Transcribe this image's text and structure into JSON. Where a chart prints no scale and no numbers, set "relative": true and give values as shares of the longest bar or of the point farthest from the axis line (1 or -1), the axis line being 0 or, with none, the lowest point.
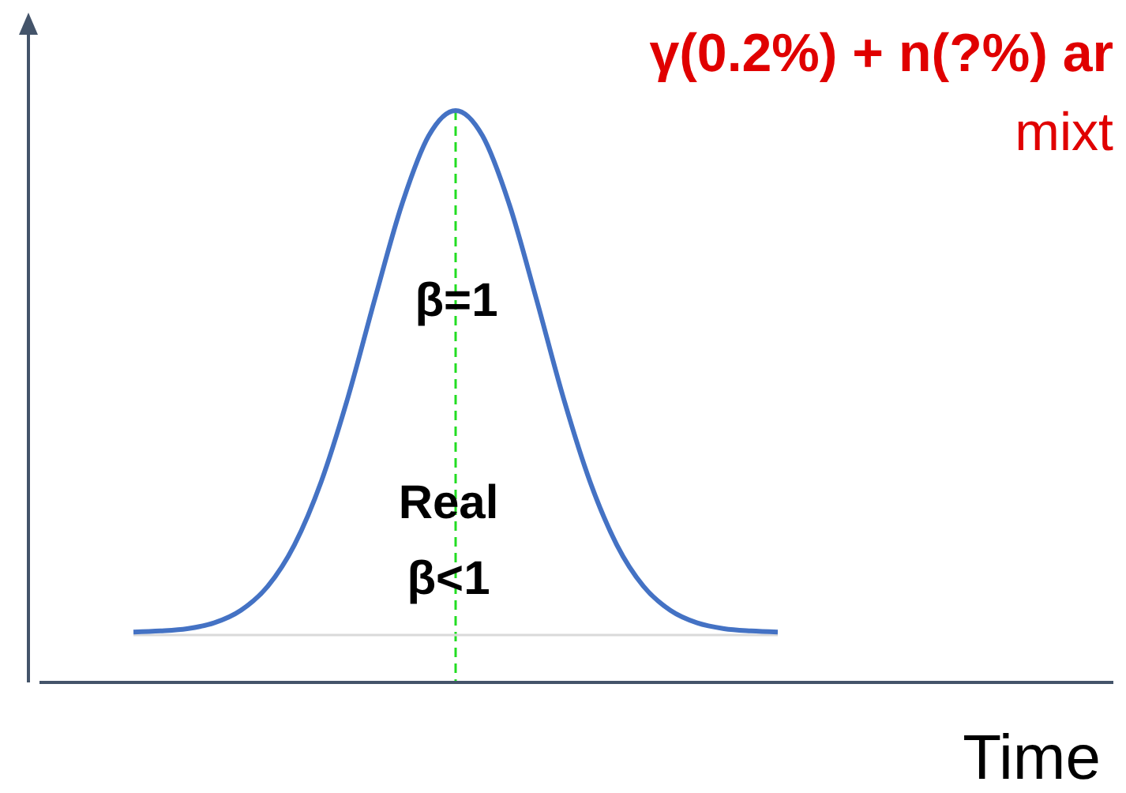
{
  "chart_data": {
    "type": "line",
    "relative": true,
    "title": "γ(0.2%) +  n(?%) ar",
    "subtitle": "mixt",
    "xlabel": "Time",
    "categories": [
      null,
      null,
      null,
      null,
      null,
      null,
      null,
      null,
      null,
      null,
      null,
      null,
      null,
      null,
      null,
      null,
      null,
      null,
      null,
      null,
      null,
      null,
      null,
      null,
      null,
      null,
      null,
      null,
      null,
      null,
      null,
      null,
      null,
      null,
      null,
      null,
      null,
      null,
      null,
      null
    ],
    "series": [
      {
        "color": "#4472c4",
        "values": [
          null,
          null,
          null,
          0.088,
          0.09,
          0.094,
          0.104,
          0.126,
          0.168,
          0.241,
          0.352,
          0.5,
          0.672,
          0.836,
          0.956,
          1,
          0.956,
          0.836,
          0.672,
          0.5,
          0.352,
          0.241,
          0.168,
          0.126,
          0.104,
          0.094,
          0.09,
          0.088,
          null,
          null,
          null,
          null,
          null,
          null,
          null,
          null,
          null,
          null,
          null,
          null
        ]
      }
    ],
    "ref_lines": [
      {
        "axis": "y",
        "value": 0.083,
        "color": "#d9d9d9",
        "line_style": "solid"
      }
    ],
    "annotations": [
      "β=1",
      "Real\nβ<1"
    ],
    "line_style": "solid"
  }
}
